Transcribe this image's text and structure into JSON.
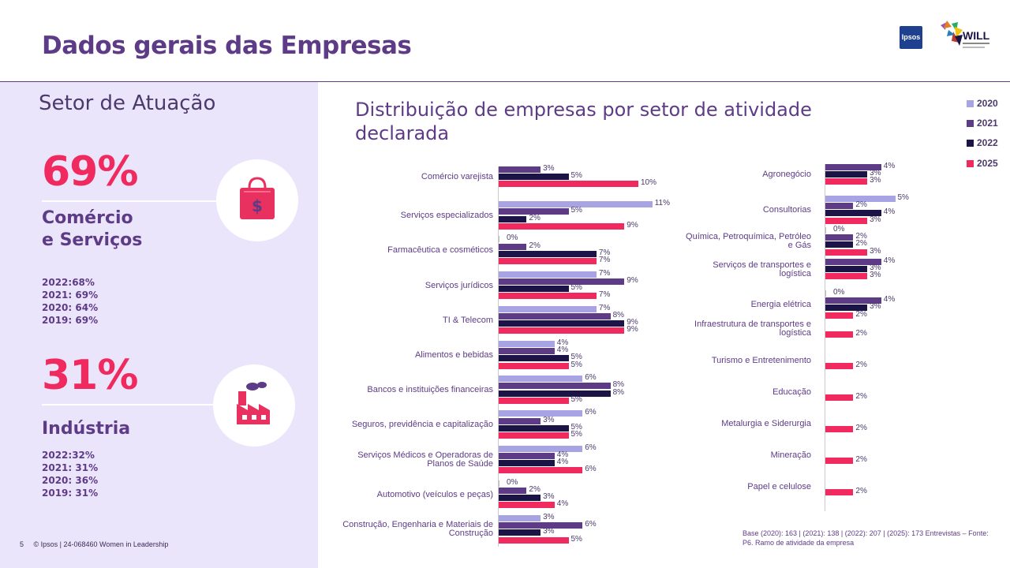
{
  "header": {
    "title": "Dados gerais das Empresas",
    "ipsos_logo": "Ipsos",
    "will_logo": "WILL"
  },
  "left": {
    "section_title": "Setor de Atuação",
    "blocks": [
      {
        "pct": "69%",
        "label_line1": "Comércio",
        "label_line2": "e Serviços",
        "icon": "shopping-bag-dollar-icon",
        "history": [
          "2022:68%",
          "2021: 69%",
          "2020: 64%",
          "2019: 69%"
        ]
      },
      {
        "pct": "31%",
        "label_line1": "Indústria",
        "label_line2": "",
        "icon": "factory-icon",
        "history": [
          "2022:32%",
          "2021: 31%",
          "2020: 36%",
          "2019: 31%"
        ]
      }
    ]
  },
  "footer": {
    "page": "5",
    "text": "© Ipsos | 24-068460 Women in Leadership"
  },
  "chart_title": "Distribuição de empresas por setor de atividade declarada",
  "base_note": "Base (2020): 163 | (2021): 138 | (2022): 207 | (2025): 173 Entrevistas – Fonte: P6. Ramo de atividade da empresa",
  "colors": {
    "2020": "#a8a3e3",
    "2021": "#5e3b87",
    "2022": "#1c1446",
    "2025": "#f0295f"
  },
  "chart_data": {
    "type": "bar",
    "orientation": "horizontal",
    "title": "Distribuição de empresas por setor de atividade declarada",
    "series_names": [
      "2020",
      "2021",
      "2022",
      "2025"
    ],
    "legend_position": "top-right",
    "panels": [
      {
        "categories": [
          {
            "name": "Comércio varejista",
            "values": [
              null,
              3,
              5,
              10
            ]
          },
          {
            "name": "Serviços especializados",
            "values": [
              11,
              5,
              2,
              9
            ]
          },
          {
            "name": "Farmacêutica e cosméticos",
            "values": [
              0,
              2,
              7,
              7
            ]
          },
          {
            "name": "Serviços jurídicos",
            "values": [
              7,
              9,
              5,
              7
            ]
          },
          {
            "name": "TI & Telecom",
            "values": [
              7,
              8,
              9,
              9
            ]
          },
          {
            "name": "Alimentos e bebidas",
            "values": [
              4,
              4,
              5,
              5
            ]
          },
          {
            "name": "Bancos e instituições financeiras",
            "values": [
              6,
              8,
              8,
              5
            ]
          },
          {
            "name": "Seguros, previdência e capitalização",
            "values": [
              6,
              3,
              5,
              5
            ]
          },
          {
            "name": "Serviços Médicos e Operadoras de Planos de Saúde",
            "values": [
              6,
              4,
              4,
              6
            ]
          },
          {
            "name": "Automotivo (veículos e peças)",
            "values": [
              0,
              2,
              3,
              4
            ]
          },
          {
            "name": "Construção, Engenharia e Materiais de Construção",
            "values": [
              3,
              6,
              3,
              5
            ]
          }
        ]
      },
      {
        "categories": [
          {
            "name": "Agronegócio",
            "values": [
              null,
              4,
              3,
              3
            ]
          },
          {
            "name": "Consultorias",
            "values": [
              5,
              2,
              4,
              3
            ]
          },
          {
            "name": "Química, Petroquímica, Petróleo e Gás",
            "values": [
              0,
              2,
              2,
              3
            ]
          },
          {
            "name": "Serviços de transportes e logística",
            "values": [
              null,
              4,
              3,
              3
            ]
          },
          {
            "name": "Energia elétrica",
            "values": [
              0,
              4,
              3,
              2
            ]
          },
          {
            "name": "Infraestrutura de transportes e logística",
            "values": [
              null,
              null,
              null,
              2
            ]
          },
          {
            "name": "Turismo e Entretenimento",
            "values": [
              null,
              null,
              null,
              2
            ]
          },
          {
            "name": "Educação",
            "values": [
              null,
              null,
              null,
              2
            ]
          },
          {
            "name": "Metalurgia e Siderurgia",
            "values": [
              null,
              null,
              null,
              2
            ]
          },
          {
            "name": "Mineração",
            "values": [
              null,
              null,
              null,
              2
            ]
          },
          {
            "name": "Papel e celulose",
            "values": [
              null,
              null,
              null,
              2
            ]
          }
        ]
      }
    ]
  }
}
